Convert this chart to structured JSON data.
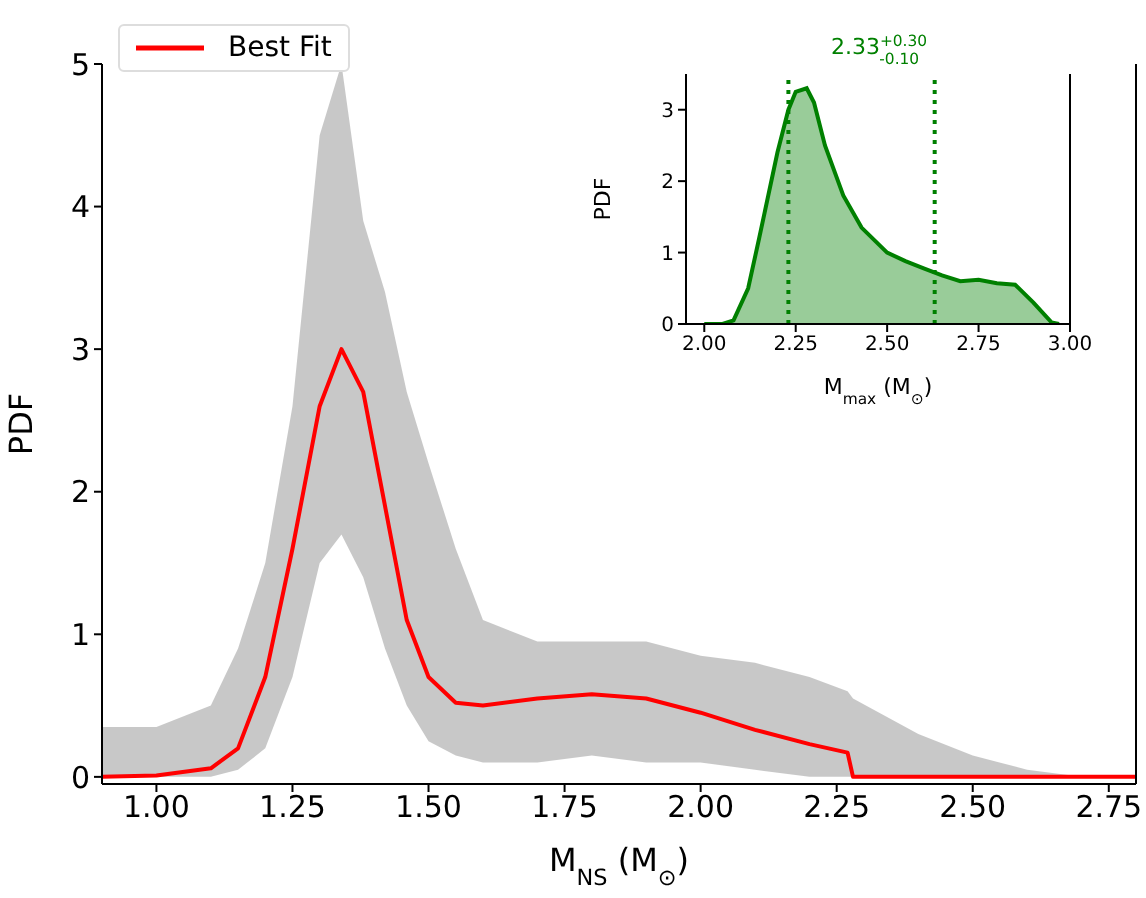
{
  "chart_data": [
    {
      "type": "line",
      "xlabel": "M$_{NS}$ (M$_{⊙}$)",
      "ylabel": "PDF",
      "xlim": [
        0.9,
        2.8
      ],
      "ylim": [
        -0.05,
        5
      ],
      "xticks": [
        {
          "value": 1,
          "label": "1.00"
        },
        {
          "value": 1.25,
          "label": "1.25"
        },
        {
          "value": 1.5,
          "label": "1.50"
        },
        {
          "value": 1.75,
          "label": "1.75"
        },
        {
          "value": 2,
          "label": "2.00"
        },
        {
          "value": 2.25,
          "label": "2.25"
        },
        {
          "value": 2.5,
          "label": "2.50"
        },
        {
          "value": 2.75,
          "label": "2.75"
        }
      ],
      "yticks": [
        0,
        1,
        2,
        3,
        4,
        5
      ],
      "legend": "top left",
      "marker": "none",
      "line_style": "solid",
      "series": [
        {
          "name": "Best Fit",
          "color": "#ff0000",
          "x": [
            0.9,
            1.0,
            1.1,
            1.15,
            1.2,
            1.25,
            1.3,
            1.34,
            1.38,
            1.42,
            1.46,
            1.5,
            1.55,
            1.6,
            1.7,
            1.8,
            1.9,
            2.0,
            2.1,
            2.2,
            2.27,
            2.28,
            2.4,
            2.5,
            2.6,
            2.7,
            2.8
          ],
          "values": [
            0,
            0.01,
            0.06,
            0.2,
            0.7,
            1.6,
            2.6,
            3.0,
            2.7,
            1.9,
            1.1,
            0.7,
            0.52,
            0.5,
            0.55,
            0.58,
            0.55,
            0.45,
            0.33,
            0.23,
            0.17,
            0,
            0,
            0,
            0,
            0,
            0
          ],
          "lower": [
            0,
            0,
            0,
            0.05,
            0.2,
            0.7,
            1.5,
            1.7,
            1.4,
            0.9,
            0.5,
            0.25,
            0.15,
            0.1,
            0.1,
            0.15,
            0.1,
            0.1,
            0.05,
            0,
            0,
            0,
            0,
            0,
            0,
            0,
            0
          ],
          "upper": [
            0.35,
            0.35,
            0.5,
            0.9,
            1.5,
            2.6,
            4.5,
            5.0,
            3.9,
            3.4,
            2.7,
            2.2,
            1.6,
            1.1,
            0.95,
            0.95,
            0.95,
            0.85,
            0.8,
            0.7,
            0.6,
            0.55,
            0.3,
            0.15,
            0.05,
            0,
            0
          ]
        }
      ]
    },
    {
      "type": "area",
      "title": "2.33$^{+0.30}$$_{-0.10}$",
      "xlabel": "M$_{max}$ (M$_{⊙}$)",
      "ylabel": "PDF",
      "xlim": [
        1.95,
        3.0
      ],
      "ylim": [
        0,
        3.5
      ],
      "xticks": [
        {
          "value": 2,
          "label": "2.00"
        },
        {
          "value": 2.25,
          "label": "2.25"
        },
        {
          "value": 2.5,
          "label": "2.50"
        },
        {
          "value": 2.75,
          "label": "2.75"
        },
        {
          "value": 3,
          "label": "3.00"
        }
      ],
      "yticks": [
        0,
        1,
        2,
        3
      ],
      "series": [
        {
          "color": "#008000",
          "x": [
            2.0,
            2.05,
            2.08,
            2.12,
            2.15,
            2.2,
            2.23,
            2.25,
            2.28,
            2.3,
            2.33,
            2.38,
            2.43,
            2.5,
            2.55,
            2.6,
            2.65,
            2.7,
            2.75,
            2.8,
            2.85,
            2.9,
            2.95,
            2.97
          ],
          "values": [
            0,
            0,
            0.05,
            0.5,
            1.2,
            2.4,
            3.0,
            3.25,
            3.3,
            3.1,
            2.5,
            1.8,
            1.35,
            1.0,
            0.88,
            0.78,
            0.68,
            0.6,
            0.62,
            0.57,
            0.55,
            0.3,
            0.02,
            0
          ]
        }
      ],
      "ref_lines": [
        {
          "axis": "x",
          "value": 2.23,
          "color": "#008000",
          "line_style": "dotted"
        },
        {
          "axis": "x",
          "value": 2.63,
          "color": "#008000",
          "line_style": "dotted"
        }
      ]
    }
  ]
}
